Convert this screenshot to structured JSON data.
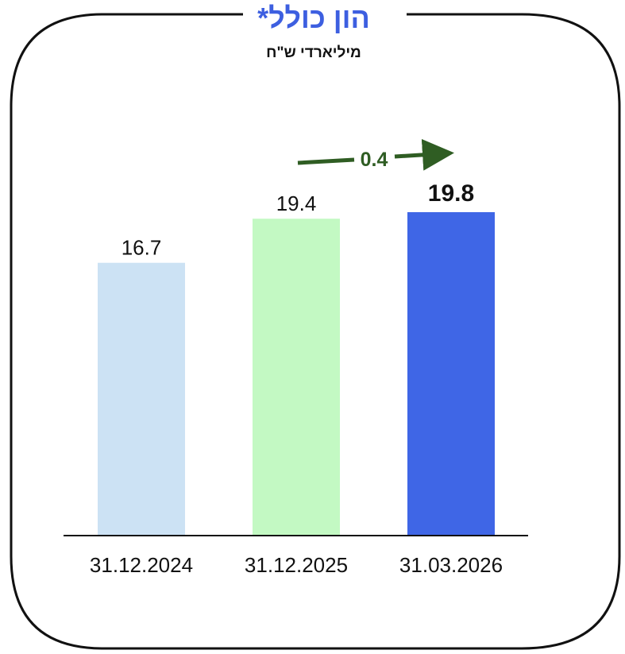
{
  "chart_data": {
    "type": "bar",
    "title": "הון כולל*",
    "subtitle": "מיליארדי ש\"ח",
    "categories": [
      "31.12.2024",
      "31.12.2025",
      "31.03.2026"
    ],
    "values": [
      16.7,
      19.4,
      19.8
    ],
    "data_labels": [
      "16.7",
      "19.4",
      "19.8"
    ],
    "bar_colors": [
      "#cce2f4",
      "#c3f9c3",
      "#3f66e6"
    ],
    "highlight_index": 2,
    "ylim": [
      0,
      19.8
    ],
    "grid": false,
    "annotation": {
      "text": "0.4",
      "from_index": 1,
      "to_index": 2,
      "color": "#2f5d23"
    }
  },
  "colors": {
    "title": "#3d5fe0",
    "frame": "#111111",
    "arrow": "#2f5d23"
  }
}
